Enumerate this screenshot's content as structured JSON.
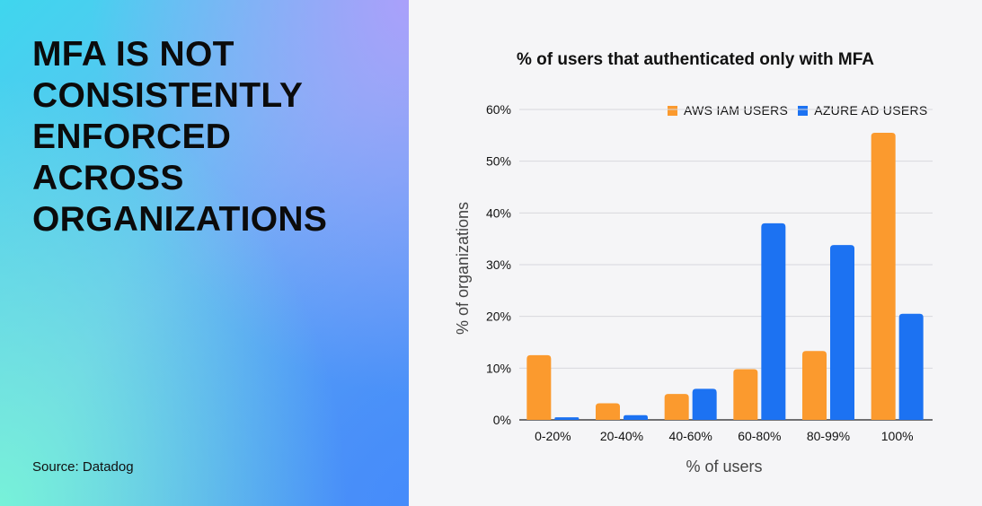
{
  "headline": "MFA IS NOT\nCONSISTENTLY\nENFORCED\nACROSS\nORGANIZATIONS",
  "source": "Source: Datadog",
  "colors": {
    "aws": "#fb9a2e",
    "azure": "#1c72f2",
    "grid": "#d8d8dc"
  },
  "chart_data": {
    "type": "bar",
    "title": "% of users that authenticated only with MFA",
    "xlabel": "% of users",
    "ylabel": "% of organizations",
    "categories": [
      "0-20%",
      "20-40%",
      "40-60%",
      "60-80%",
      "80-99%",
      "100%"
    ],
    "series": [
      {
        "name": "AWS IAM USERS",
        "values": [
          12.5,
          3.2,
          5.0,
          9.8,
          13.3,
          55.5
        ]
      },
      {
        "name": "AZURE AD USERS",
        "values": [
          0.5,
          0.9,
          6.0,
          38.0,
          33.8,
          20.5
        ]
      }
    ],
    "ylim": [
      0,
      60
    ],
    "yticks": [
      0,
      10,
      20,
      30,
      40,
      50,
      60
    ],
    "ytick_labels": [
      "0%",
      "10%",
      "20%",
      "30%",
      "40%",
      "50%",
      "60%"
    ],
    "legend_position": "top-right",
    "grid": true
  }
}
